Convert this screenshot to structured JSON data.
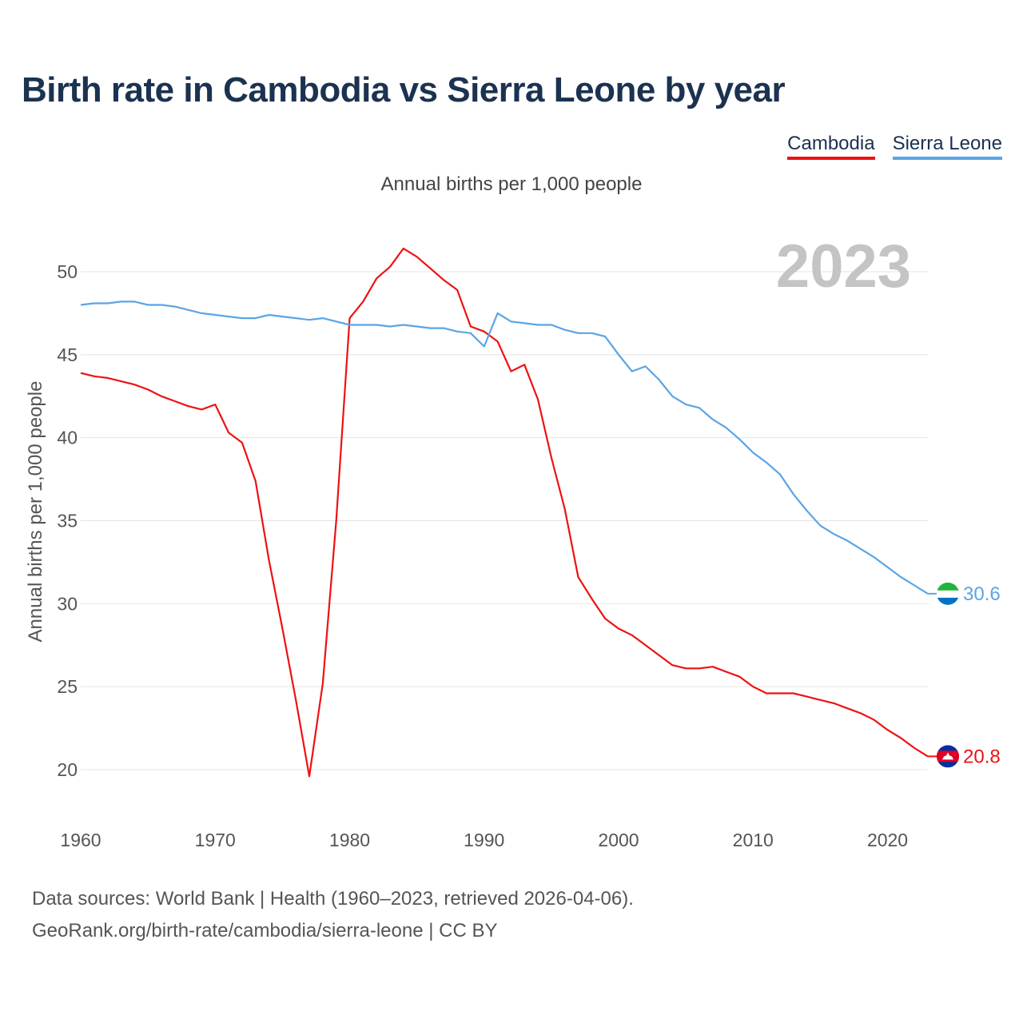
{
  "chart_data": {
    "type": "line",
    "title": "Birth rate in Cambodia vs Sierra Leone by year",
    "subtitle": "Annual births per 1,000 people",
    "ylabel": "Annual births per 1,000 people",
    "xlabel": "",
    "current_year_label": "2023",
    "xlim": [
      1960,
      2023
    ],
    "ylim": [
      17,
      53
    ],
    "x_ticks": [
      1960,
      1970,
      1980,
      1990,
      2000,
      2010,
      2020
    ],
    "y_ticks": [
      20,
      25,
      30,
      35,
      40,
      45,
      50
    ],
    "legend_position": "top-right",
    "x": [
      1960,
      1961,
      1962,
      1963,
      1964,
      1965,
      1966,
      1967,
      1968,
      1969,
      1970,
      1971,
      1972,
      1973,
      1974,
      1975,
      1976,
      1977,
      1978,
      1979,
      1980,
      1981,
      1982,
      1983,
      1984,
      1985,
      1986,
      1987,
      1988,
      1989,
      1990,
      1991,
      1992,
      1993,
      1994,
      1995,
      1996,
      1997,
      1998,
      1999,
      2000,
      2001,
      2002,
      2003,
      2004,
      2005,
      2006,
      2007,
      2008,
      2009,
      2010,
      2011,
      2012,
      2013,
      2014,
      2015,
      2016,
      2017,
      2018,
      2019,
      2020,
      2021,
      2022,
      2023
    ],
    "series": [
      {
        "name": "Cambodia",
        "color": "#ee1111",
        "end_label": "20.8",
        "flag": "cambodia-flag-icon",
        "values": [
          43.9,
          43.7,
          43.6,
          43.4,
          43.2,
          42.9,
          42.5,
          42.2,
          41.9,
          41.7,
          42.0,
          40.3,
          39.7,
          37.4,
          32.6,
          28.5,
          24.2,
          19.6,
          25.2,
          35.0,
          47.2,
          48.2,
          49.6,
          50.3,
          51.4,
          50.9,
          50.2,
          49.5,
          48.9,
          46.7,
          46.4,
          45.8,
          44.0,
          44.4,
          42.3,
          38.8,
          35.7,
          31.6,
          30.3,
          29.1,
          28.5,
          28.1,
          27.5,
          26.9,
          26.3,
          26.1,
          26.1,
          26.2,
          25.9,
          25.6,
          25.0,
          24.6,
          24.6,
          24.6,
          24.4,
          24.2,
          24.0,
          23.7,
          23.4,
          23.0,
          22.4,
          21.9,
          21.3,
          20.8
        ]
      },
      {
        "name": "Sierra Leone",
        "color": "#5ba4e6",
        "end_label": "30.6",
        "flag": "sierra-leone-flag-icon",
        "values": [
          48.0,
          48.1,
          48.1,
          48.2,
          48.2,
          48.0,
          48.0,
          47.9,
          47.7,
          47.5,
          47.4,
          47.3,
          47.2,
          47.2,
          47.4,
          47.3,
          47.2,
          47.1,
          47.2,
          47.0,
          46.8,
          46.8,
          46.8,
          46.7,
          46.8,
          46.7,
          46.6,
          46.6,
          46.4,
          46.3,
          45.5,
          47.5,
          47.0,
          46.9,
          46.8,
          46.8,
          46.5,
          46.3,
          46.3,
          46.1,
          45.0,
          44.0,
          44.3,
          43.5,
          42.5,
          42.0,
          41.8,
          41.1,
          40.6,
          39.9,
          39.1,
          38.5,
          37.8,
          36.6,
          35.6,
          34.7,
          34.2,
          33.8,
          33.3,
          32.8,
          32.2,
          31.6,
          31.1,
          30.6
        ]
      }
    ]
  },
  "footer": {
    "line1": "Data sources: World Bank | Health (1960–2023, retrieved 2026-04-06).",
    "line2": "GeoRank.org/birth-rate/cambodia/sierra-leone | CC BY"
  }
}
